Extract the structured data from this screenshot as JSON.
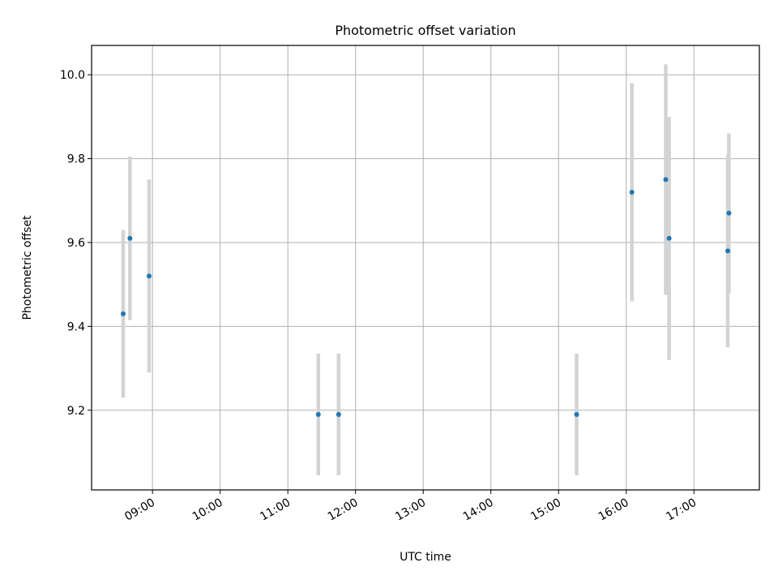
{
  "chart_data": {
    "type": "scatter",
    "title": "Photometric offset variation",
    "xlabel": "UTC time",
    "ylabel": "Photometric offset",
    "x_axis": "time",
    "xlim": [
      "08:06",
      "17:58"
    ],
    "ylim": [
      9.01,
      10.07
    ],
    "x_ticks": [
      "09:00",
      "10:00",
      "11:00",
      "12:00",
      "13:00",
      "14:00",
      "15:00",
      "16:00",
      "17:00"
    ],
    "y_ticks": [
      9.2,
      9.4,
      9.6,
      9.8,
      10.0
    ],
    "y_tick_labels": [
      "9.2",
      "9.4",
      "9.6",
      "9.8",
      "10.0"
    ],
    "grid": true,
    "points": [
      {
        "x": "08:34",
        "y": 9.43,
        "yerr": 0.2
      },
      {
        "x": "08:40",
        "y": 9.61,
        "yerr": 0.195
      },
      {
        "x": "08:57",
        "y": 9.52,
        "yerr": 0.23
      },
      {
        "x": "11:27",
        "y": 9.19,
        "yerr": 0.145
      },
      {
        "x": "11:45",
        "y": 9.19,
        "yerr": 0.145
      },
      {
        "x": "15:16",
        "y": 9.19,
        "yerr": 0.145
      },
      {
        "x": "16:05",
        "y": 9.72,
        "yerr": 0.26
      },
      {
        "x": "16:35",
        "y": 9.75,
        "yerr": 0.275
      },
      {
        "x": "16:38",
        "y": 9.61,
        "yerr": 0.29
      },
      {
        "x": "17:30",
        "y": 9.58,
        "yerr": 0.23
      },
      {
        "x": "17:31",
        "y": 9.67,
        "yerr": 0.19
      }
    ],
    "colors": {
      "marker": "#1f77b4",
      "errorbar": "#d3d3d3",
      "grid": "#b0b0b0"
    }
  }
}
